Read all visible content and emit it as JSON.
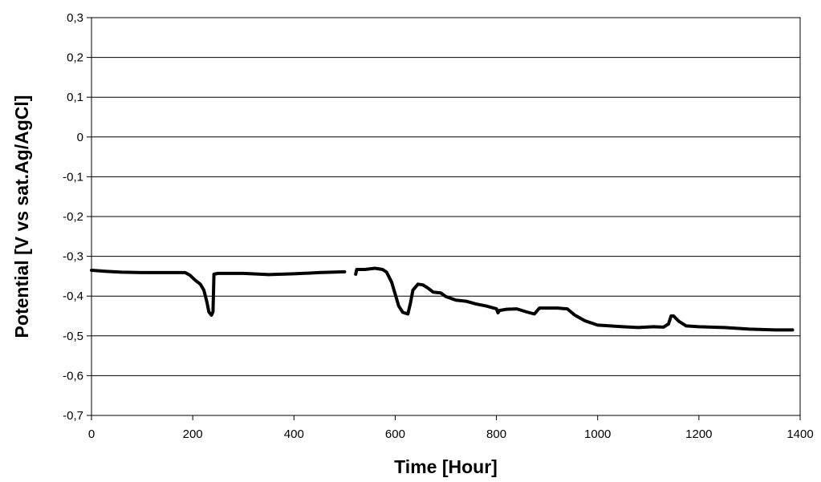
{
  "chart_data": {
    "type": "line",
    "title": "",
    "xlabel": "Time [Hour]",
    "ylabel": "Potential [V vs sat.Ag/AgCl]",
    "xlim": [
      0,
      1400
    ],
    "ylim": [
      -0.7,
      0.3
    ],
    "x_ticks": [
      0,
      200,
      400,
      600,
      800,
      1000,
      1200,
      1400
    ],
    "x_tick_labels": [
      "0",
      "200",
      "400",
      "600",
      "800",
      "1000",
      "1200",
      "1400"
    ],
    "y_ticks": [
      0.3,
      0.2,
      0.1,
      0,
      -0.1,
      -0.2,
      -0.3,
      -0.4,
      -0.5,
      -0.6,
      -0.7
    ],
    "y_tick_labels": [
      "0,3",
      "0,2",
      "0,1",
      "0",
      "-0,1",
      "-0,2",
      "-0,3",
      "-0,4",
      "-0,5",
      "-0,6",
      "-0,7"
    ],
    "grid": "horizontal",
    "legend": "none",
    "colors": {
      "line": "#000000",
      "grid": "#000000",
      "background": "#ffffff"
    },
    "series": [
      {
        "segments": [
          [
            [
              0,
              -0.335
            ],
            [
              30,
              -0.338
            ],
            [
              60,
              -0.34
            ],
            [
              100,
              -0.341
            ],
            [
              150,
              -0.341
            ],
            [
              185,
              -0.341
            ],
            [
              195,
              -0.348
            ],
            [
              205,
              -0.36
            ],
            [
              215,
              -0.37
            ],
            [
              222,
              -0.385
            ],
            [
              228,
              -0.415
            ],
            [
              232,
              -0.44
            ],
            [
              237,
              -0.448
            ],
            [
              240,
              -0.44
            ],
            [
              242,
              -0.345
            ],
            [
              250,
              -0.343
            ],
            [
              300,
              -0.343
            ],
            [
              350,
              -0.346
            ],
            [
              400,
              -0.344
            ],
            [
              450,
              -0.341
            ],
            [
              500,
              -0.339
            ]
          ],
          [
            [
              522,
              -0.345
            ],
            [
              524,
              -0.333
            ],
            [
              540,
              -0.333
            ],
            [
              560,
              -0.33
            ],
            [
              575,
              -0.333
            ],
            [
              583,
              -0.34
            ],
            [
              593,
              -0.365
            ],
            [
              600,
              -0.395
            ],
            [
              607,
              -0.425
            ],
            [
              615,
              -0.441
            ],
            [
              625,
              -0.445
            ],
            [
              630,
              -0.418
            ],
            [
              635,
              -0.385
            ],
            [
              645,
              -0.37
            ],
            [
              655,
              -0.372
            ],
            [
              665,
              -0.38
            ],
            [
              675,
              -0.39
            ],
            [
              690,
              -0.392
            ],
            [
              700,
              -0.401
            ],
            [
              720,
              -0.41
            ],
            [
              740,
              -0.413
            ],
            [
              760,
              -0.42
            ],
            [
              780,
              -0.425
            ],
            [
              800,
              -0.432
            ],
            [
              803,
              -0.442
            ],
            [
              806,
              -0.436
            ],
            [
              820,
              -0.433
            ],
            [
              840,
              -0.432
            ],
            [
              860,
              -0.44
            ],
            [
              875,
              -0.445
            ],
            [
              885,
              -0.43
            ],
            [
              900,
              -0.43
            ],
            [
              920,
              -0.43
            ],
            [
              940,
              -0.432
            ],
            [
              955,
              -0.448
            ],
            [
              975,
              -0.462
            ],
            [
              1000,
              -0.473
            ],
            [
              1050,
              -0.477
            ],
            [
              1080,
              -0.479
            ],
            [
              1110,
              -0.477
            ],
            [
              1130,
              -0.478
            ],
            [
              1140,
              -0.47
            ],
            [
              1145,
              -0.45
            ],
            [
              1150,
              -0.45
            ],
            [
              1160,
              -0.463
            ],
            [
              1175,
              -0.475
            ],
            [
              1200,
              -0.477
            ],
            [
              1250,
              -0.479
            ],
            [
              1300,
              -0.483
            ],
            [
              1350,
              -0.485
            ],
            [
              1385,
              -0.485
            ]
          ]
        ]
      }
    ]
  }
}
